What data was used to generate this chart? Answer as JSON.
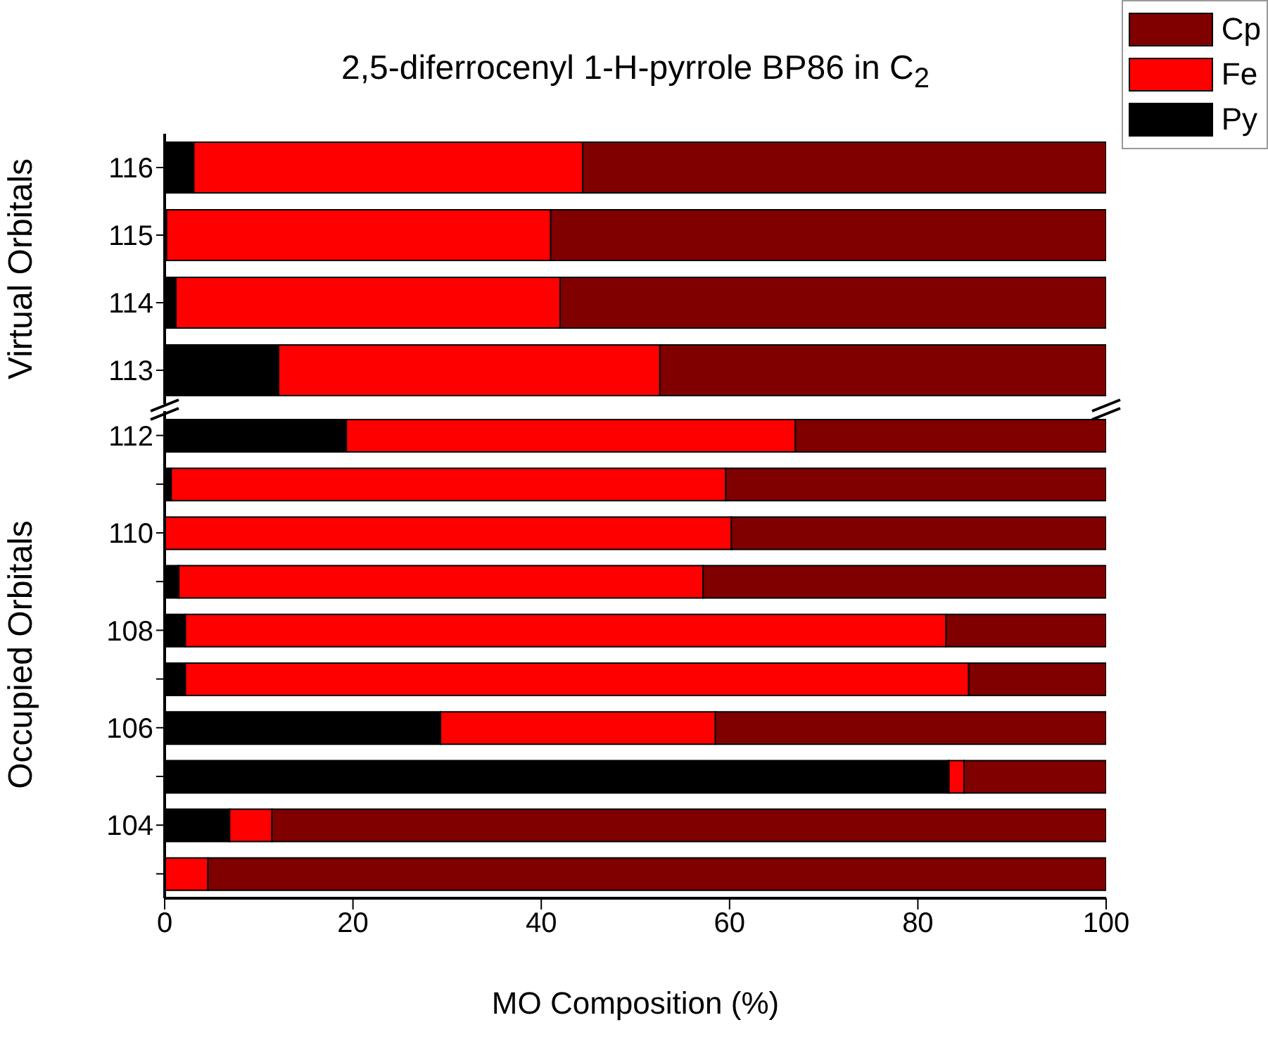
{
  "chart_data": [
    {
      "type": "bar",
      "orientation": "horizontal",
      "stacked": true,
      "title": "2,5-diferrocenyl 1-H-pyrrole BP86 in C$_{2}$",
      "ylabel": "Virtual Orbitals",
      "categories": [
        "116",
        "115",
        "114",
        "113"
      ],
      "xlim": [
        0,
        100
      ],
      "xticks": [
        0,
        20,
        40,
        60,
        80,
        100
      ],
      "tick_labels": "y",
      "legend": "top right",
      "series": [
        {
          "name": "Py",
          "color": "#000000",
          "values": [
            3.1,
            0.2,
            1.2,
            12.1
          ]
        },
        {
          "name": "Fe",
          "color": "#ff0000",
          "values": [
            41.3,
            40.8,
            40.8,
            40.5
          ]
        },
        {
          "name": "Cp",
          "color": "#800000",
          "values": [
            55.6,
            59.0,
            58.0,
            47.4
          ]
        }
      ]
    },
    {
      "type": "bar",
      "orientation": "horizontal",
      "stacked": true,
      "xlabel": "MO Composition (%)",
      "ylabel": "Occupied Orbitals",
      "categories": [
        "112",
        null,
        "110",
        null,
        "108",
        null,
        "106",
        null,
        "104",
        null
      ],
      "xlim": [
        0,
        100
      ],
      "xticks": [
        0,
        20,
        40,
        60,
        80,
        100
      ],
      "series": [
        {
          "color": "#000000",
          "values": [
            19.3,
            0.7,
            null,
            1.5,
            2.2,
            2.2,
            29.3,
            83.3,
            6.9,
            null
          ]
        },
        {
          "color": "#ff0000",
          "values": [
            47.7,
            58.9,
            60.2,
            55.7,
            80.8,
            83.2,
            29.2,
            1.6,
            4.5,
            4.6
          ]
        },
        {
          "color": "#800000",
          "values": [
            33.0,
            40.4,
            39.8,
            42.8,
            17.0,
            14.6,
            41.5,
            15.1,
            88.6,
            95.4
          ]
        }
      ]
    }
  ]
}
